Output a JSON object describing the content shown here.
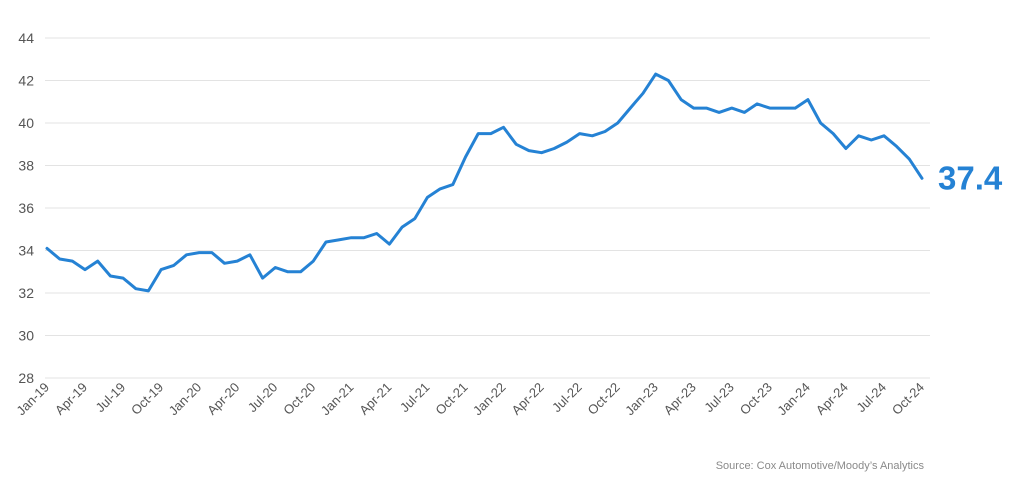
{
  "chart_data": {
    "type": "line",
    "title": "",
    "xlabel": "",
    "ylabel": "",
    "ylim": [
      28,
      44
    ],
    "yticks": [
      28,
      30,
      32,
      34,
      36,
      38,
      40,
      42,
      44
    ],
    "grid": true,
    "legend": "none",
    "x": [
      "Jan-19",
      "Feb-19",
      "Mar-19",
      "Apr-19",
      "May-19",
      "Jun-19",
      "Jul-19",
      "Aug-19",
      "Sep-19",
      "Oct-19",
      "Nov-19",
      "Dec-19",
      "Jan-20",
      "Feb-20",
      "Mar-20",
      "Apr-20",
      "May-20",
      "Jun-20",
      "Jul-20",
      "Aug-20",
      "Sep-20",
      "Oct-20",
      "Nov-20",
      "Dec-20",
      "Jan-21",
      "Feb-21",
      "Mar-21",
      "Apr-21",
      "May-21",
      "Jun-21",
      "Jul-21",
      "Aug-21",
      "Sep-21",
      "Oct-21",
      "Nov-21",
      "Dec-21",
      "Jan-22",
      "Feb-22",
      "Mar-22",
      "Apr-22",
      "May-22",
      "Jun-22",
      "Jul-22",
      "Aug-22",
      "Sep-22",
      "Oct-22",
      "Nov-22",
      "Dec-22",
      "Jan-23",
      "Feb-23",
      "Mar-23",
      "Apr-23",
      "May-23",
      "Jun-23",
      "Jul-23",
      "Aug-23",
      "Sep-23",
      "Oct-23",
      "Nov-23",
      "Dec-23",
      "Jan-24",
      "Feb-24",
      "Mar-24",
      "Apr-24",
      "May-24",
      "Jun-24",
      "Jul-24",
      "Aug-24",
      "Sep-24",
      "Oct-24"
    ],
    "xtick_labels": [
      "Jan-19",
      "Apr-19",
      "Jul-19",
      "Oct-19",
      "Jan-20",
      "Apr-20",
      "Jul-20",
      "Oct-20",
      "Jan-21",
      "Apr-21",
      "Jul-21",
      "Oct-21",
      "Jan-22",
      "Apr-22",
      "Jul-22",
      "Oct-22",
      "Jan-23",
      "Apr-23",
      "Jul-23",
      "Oct-23",
      "Jan-24",
      "Apr-24",
      "Jul-24",
      "Oct-24"
    ],
    "series": [
      {
        "color": "#2582d4",
        "values": [
          34.1,
          33.6,
          33.5,
          33.1,
          33.5,
          32.8,
          32.7,
          32.2,
          32.1,
          33.1,
          33.3,
          33.8,
          33.9,
          33.9,
          33.4,
          33.5,
          33.8,
          32.7,
          33.2,
          33.0,
          33.0,
          33.5,
          34.4,
          34.5,
          34.6,
          34.6,
          34.8,
          34.3,
          35.1,
          35.5,
          36.5,
          36.9,
          37.1,
          38.4,
          39.5,
          39.5,
          39.8,
          39.0,
          38.7,
          38.6,
          38.8,
          39.1,
          39.5,
          39.4,
          39.6,
          40.0,
          40.7,
          41.4,
          42.3,
          42.0,
          41.1,
          40.7,
          40.7,
          40.5,
          40.7,
          40.5,
          40.9,
          40.7,
          40.7,
          40.7,
          41.1,
          40.0,
          39.5,
          38.8,
          39.4,
          39.2,
          39.4,
          38.9,
          38.3,
          37.4
        ]
      }
    ],
    "last_value_label": "37.4"
  },
  "source": "Source: Cox Automotive/Moody’s Analytics"
}
